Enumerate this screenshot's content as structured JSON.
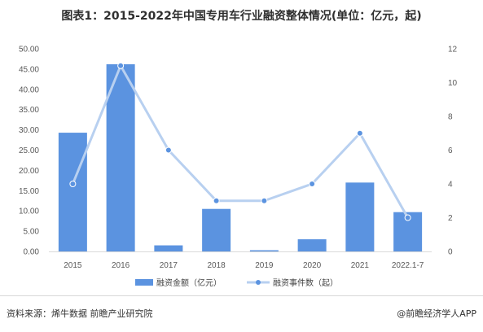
{
  "title": "图表1：2015-2022年中国专用车行业融资整体情况(单位：亿元，起)",
  "source": "资料来源：烯牛数据 前瞻产业研究院",
  "brand": "@前瞻经济学人APP",
  "colors": {
    "bar": "#5b93e0",
    "line": "#b8d0f0",
    "marker": "#5b93e0"
  },
  "chart_data": {
    "type": "bar+line",
    "categories": [
      "2015",
      "2016",
      "2017",
      "2018",
      "2019",
      "2020",
      "2021",
      "2022.1-7"
    ],
    "series": [
      {
        "name": "融资金额（亿元）",
        "type": "bar",
        "axis": "left",
        "values": [
          29.3,
          46.2,
          1.5,
          10.5,
          0.3,
          3.0,
          17.0,
          9.7
        ]
      },
      {
        "name": "融资事件数（起）",
        "type": "line",
        "axis": "right",
        "values": [
          4,
          11,
          6,
          3,
          3,
          4,
          7,
          2
        ]
      }
    ],
    "y_left": {
      "min": 0,
      "max": 50,
      "ticks": [
        "0.00",
        "5.00",
        "10.00",
        "15.00",
        "20.00",
        "25.00",
        "30.00",
        "35.00",
        "40.00",
        "45.00",
        "50.00"
      ]
    },
    "y_right": {
      "min": 0,
      "max": 12,
      "ticks": [
        "0",
        "2",
        "4",
        "6",
        "8",
        "10",
        "12"
      ]
    },
    "grid": false,
    "legend_position": "bottom"
  }
}
